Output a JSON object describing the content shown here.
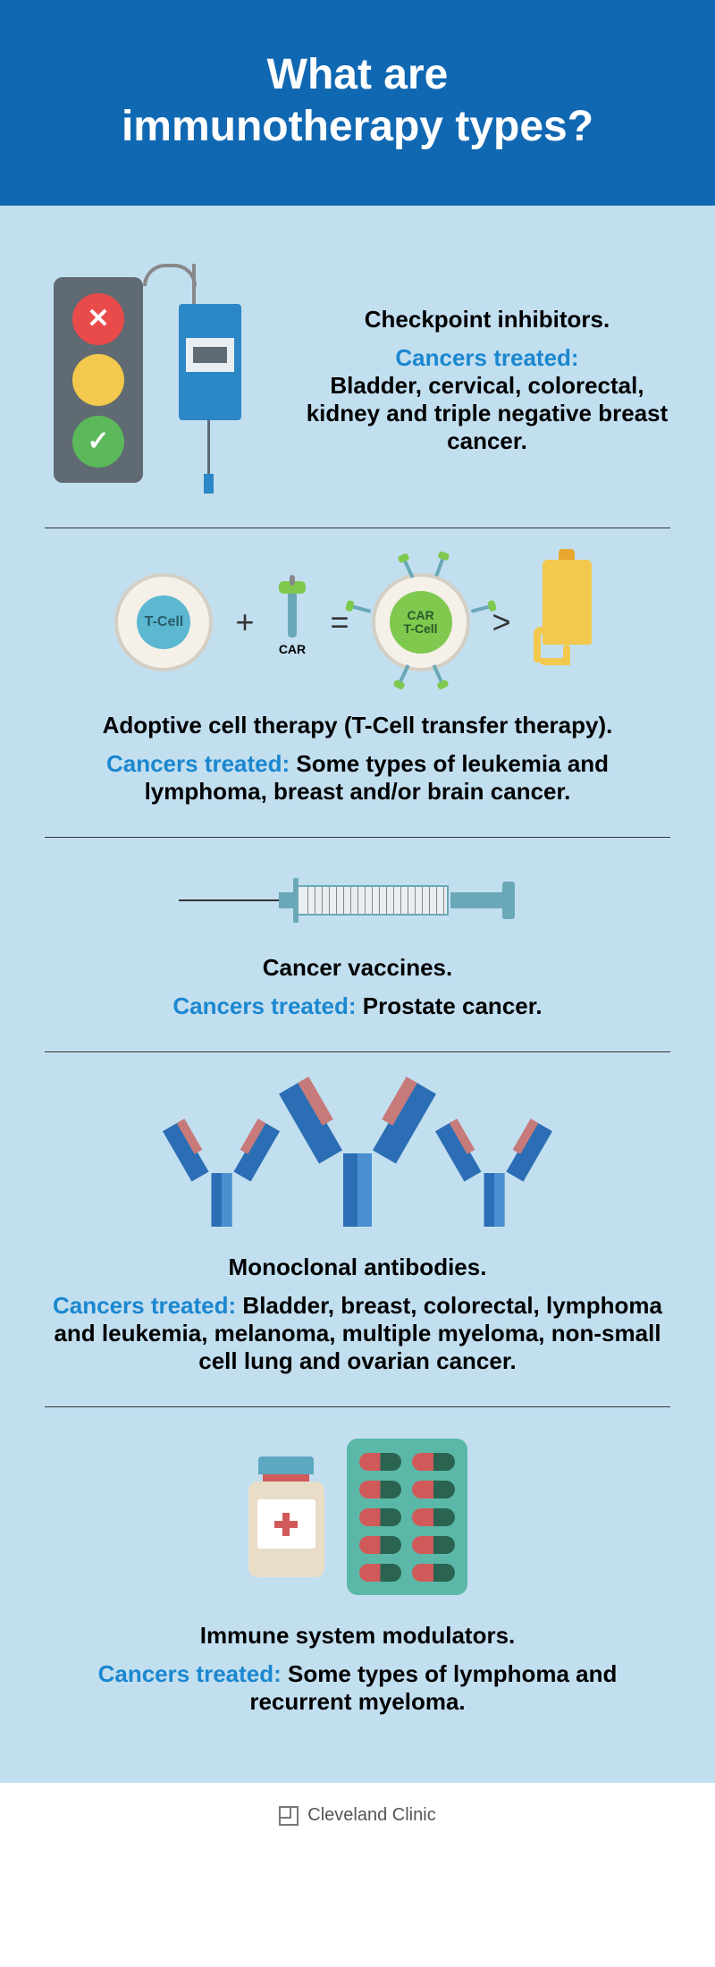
{
  "header": {
    "title_line1": "What are",
    "title_line2": "immunotherapy types?"
  },
  "treated_label": "Cancers treated:",
  "section1": {
    "title": "Checkpoint inhibitors.",
    "treated": " Bladder, cervical, colorectal, kidney and triple negative breast cancer."
  },
  "section2": {
    "tcell_label": "T-Cell",
    "car_label": "CAR",
    "car_tcell_label1": "CAR",
    "car_tcell_label2": "T-Cell",
    "title": "Adoptive cell therapy (T-Cell transfer therapy).",
    "treated": " Some types of leukemia and lymphoma, breast and/or brain cancer."
  },
  "section3": {
    "title": "Cancer vaccines.",
    "treated": " Prostate cancer."
  },
  "section4": {
    "title": "Monoclonal antibodies.",
    "treated": " Bladder, breast, colorectal, lymphoma and leukemia, melanoma, multiple myeloma, non-small cell lung and ovarian cancer."
  },
  "section5": {
    "title": "Immune system modulators.",
    "treated": " Some types of lymphoma and recurrent myeloma."
  },
  "footer": {
    "brand": "Cleveland Clinic"
  },
  "colors": {
    "header_bg": "#1168b2",
    "body_bg": "#c2dff0",
    "accent_text": "#1b87cf",
    "red": "#e94b4b",
    "yellow": "#f2c94c",
    "green": "#5bb85b",
    "blue_dark": "#2c6eb5",
    "blue_light": "#4a8fd0",
    "pink": "#c77a7a",
    "teal": "#5bb8a8",
    "pill_green": "#2a6450",
    "pill_red": "#d05a5a"
  }
}
